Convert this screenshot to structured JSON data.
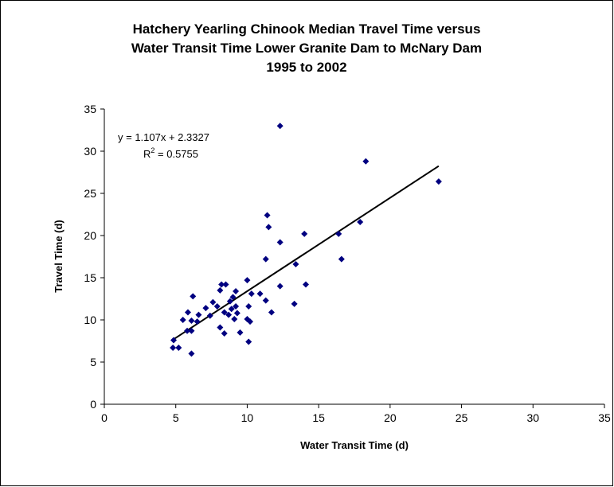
{
  "chart_data": {
    "type": "scatter",
    "title": [
      "Hatchery Yearling Chinook Median Travel Time versus",
      "Water Transit Time Lower Granite Dam to McNary Dam",
      "1995 to 2002"
    ],
    "x_label": "Water Transit Time (d)",
    "y_label": "Travel Time (d)",
    "xlim": [
      0,
      35
    ],
    "xticks": [
      0,
      5,
      10,
      15,
      20,
      25,
      30,
      35
    ],
    "ylim": [
      0,
      35
    ],
    "yticks": [
      0,
      5,
      10,
      15,
      20,
      25,
      30,
      35
    ],
    "color": "#000080",
    "x": [
      4.8,
      5.2,
      4.85,
      5.5,
      5.8,
      5.85,
      6.1,
      6.1,
      6.1,
      6.2,
      6.5,
      6.6,
      7.1,
      7.4,
      7.6,
      7.9,
      8.1,
      8.1,
      8.2,
      8.4,
      8.4,
      8.5,
      8.7,
      8.8,
      8.9,
      9.0,
      9.1,
      9.2,
      9.2,
      9.3,
      9.5,
      10.0,
      10.0,
      10.1,
      10.1,
      10.2,
      10.3,
      10.9,
      11.3,
      11.3,
      11.4,
      11.5,
      11.7,
      12.3,
      12.3,
      12.3,
      13.3,
      13.4,
      14.0,
      14.1,
      16.4,
      16.6,
      17.9,
      18.3,
      23.4
    ],
    "values": [
      6.7,
      6.7,
      7.6,
      10.0,
      8.7,
      10.9,
      9.9,
      6.0,
      8.7,
      12.8,
      9.8,
      10.6,
      11.4,
      10.5,
      12.1,
      11.6,
      9.1,
      13.5,
      14.2,
      8.4,
      10.9,
      14.2,
      10.6,
      12.2,
      11.3,
      12.7,
      10.1,
      13.4,
      11.6,
      10.8,
      8.5,
      14.7,
      10.1,
      11.6,
      7.4,
      9.8,
      13.1,
      13.1,
      17.2,
      12.3,
      22.4,
      21.0,
      10.9,
      14.0,
      19.2,
      33.0,
      11.9,
      16.6,
      20.2,
      14.2,
      20.2,
      17.2,
      21.6,
      28.8,
      26.4
    ],
    "trendline": {
      "equation": "y = 1.107x + 2.3327",
      "slope": 1.107,
      "intercept": 2.3327,
      "color": "#000000",
      "r_squared": {
        "symbol": "R",
        "exponent": "2",
        "text": " = 0.5755"
      }
    }
  }
}
